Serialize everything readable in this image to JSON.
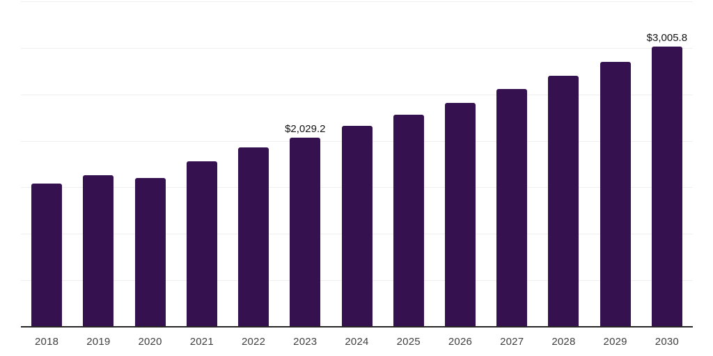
{
  "chart_data": {
    "type": "bar",
    "title": "",
    "xlabel": "",
    "ylabel": "",
    "categories": [
      "2018",
      "2019",
      "2020",
      "2021",
      "2022",
      "2023",
      "2024",
      "2025",
      "2026",
      "2027",
      "2028",
      "2029",
      "2030"
    ],
    "values": [
      1530,
      1625,
      1590,
      1770,
      1920,
      2029.2,
      2155,
      2275,
      2400,
      2550,
      2695,
      2845,
      3005.8
    ],
    "annotations": [
      {
        "category": "2023",
        "index": 5,
        "text": "$2,029.2"
      },
      {
        "category": "2030",
        "index": 12,
        "text": "$3,005.8"
      }
    ],
    "ylim": [
      0,
      3500
    ],
    "gridline_interval": 500,
    "grid": true,
    "legend": false,
    "bar_color": "#36114F",
    "axis_line_color": "#262626",
    "gridline_color": "#efefef",
    "tick_label_color": "#404040",
    "data_label_color": "#111111"
  }
}
